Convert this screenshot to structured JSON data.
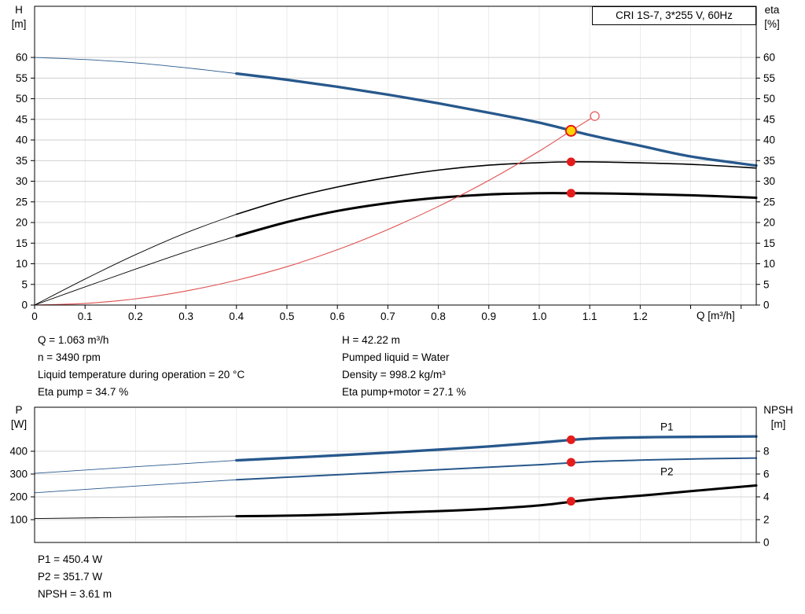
{
  "details": {
    "left": [
      "Q = 1.063 m³/h",
      "n = 3490 rpm",
      "Liquid temperature during operation = 20 °C",
      "Eta pump = 34.7 %"
    ],
    "right": [
      "H = 42.22 m",
      "Pumped liquid = Water",
      "Density = 998.2 kg/m³",
      "Eta pump+motor = 27.1 %"
    ],
    "bottom": [
      "P1 = 450.4 W",
      "P2 = 351.7 W",
      "NPSH = 3.61 m"
    ]
  },
  "chart_data": [
    {
      "id": "qh-eta",
      "type": "line",
      "title": "CRI 1S-7, 3*255 V, 60Hz",
      "x_label": "Q [m³/h]",
      "y_left_label": [
        "H",
        "[m]"
      ],
      "y_right_label": [
        "eta",
        "[%]"
      ],
      "xlim": [
        0,
        1.43
      ],
      "ylim_left": [
        0,
        72.4
      ],
      "ylim_right": [
        0,
        72.4
      ],
      "grid": true,
      "x_ticks": [
        {
          "v": 0,
          "t": "0"
        },
        {
          "v": 0.1,
          "t": "0.1"
        },
        {
          "v": 0.2,
          "t": "0.2"
        },
        {
          "v": 0.3,
          "t": "0.3"
        },
        {
          "v": 0.4,
          "t": "0.4"
        },
        {
          "v": 0.5,
          "t": "0.5"
        },
        {
          "v": 0.6,
          "t": "0.6"
        },
        {
          "v": 0.7,
          "t": "0.7"
        },
        {
          "v": 0.8,
          "t": "0.8"
        },
        {
          "v": 0.9,
          "t": "0.9"
        },
        {
          "v": 1,
          "t": "1.0"
        },
        {
          "v": 1.1,
          "t": "1.1"
        },
        {
          "v": 1.2,
          "t": "1.2"
        }
      ],
      "x_minor": [
        1.3,
        1.4
      ],
      "x_grid": [
        0.1,
        0.2,
        0.3,
        0.4,
        0.5,
        0.6,
        0.7,
        0.8,
        0.9,
        1,
        1.1,
        1.2,
        1.3,
        1.4
      ],
      "y_ticks_left": [
        {
          "v": 0,
          "t": "0"
        },
        {
          "v": 5,
          "t": "5"
        },
        {
          "v": 10,
          "t": "10"
        },
        {
          "v": 15,
          "t": "15"
        },
        {
          "v": 20,
          "t": "20"
        },
        {
          "v": 25,
          "t": "25"
        },
        {
          "v": 30,
          "t": "30"
        },
        {
          "v": 35,
          "t": "35"
        },
        {
          "v": 40,
          "t": "40"
        },
        {
          "v": 45,
          "t": "45"
        },
        {
          "v": 50,
          "t": "50"
        },
        {
          "v": 55,
          "t": "55"
        },
        {
          "v": 60,
          "t": "60"
        }
      ],
      "y_ticks_right": [
        {
          "v": 0,
          "t": "0"
        },
        {
          "v": 5,
          "t": "5"
        },
        {
          "v": 10,
          "t": "10"
        },
        {
          "v": 15,
          "t": "15"
        },
        {
          "v": 20,
          "t": "20"
        },
        {
          "v": 25,
          "t": "25"
        },
        {
          "v": 30,
          "t": "30"
        },
        {
          "v": 35,
          "t": "35"
        },
        {
          "v": 40,
          "t": "40"
        },
        {
          "v": 45,
          "t": "45"
        },
        {
          "v": 50,
          "t": "50"
        },
        {
          "v": 55,
          "t": "55"
        },
        {
          "v": 60,
          "t": "60"
        }
      ],
      "series": [
        {
          "name": "h-curve-lead",
          "axis": "left",
          "color": "#27588c",
          "width": 0.9,
          "points": [
            [
              0,
              60
            ],
            [
              0.1,
              59.5
            ],
            [
              0.2,
              58.7
            ],
            [
              0.3,
              57.5
            ],
            [
              0.4,
              56.1
            ]
          ]
        },
        {
          "name": "h-curve",
          "axis": "left",
          "color": "#27588c",
          "width": 3.3,
          "points": [
            [
              0.4,
              56.1
            ],
            [
              0.5,
              54.6
            ],
            [
              0.6,
              52.9
            ],
            [
              0.7,
              51
            ],
            [
              0.8,
              48.9
            ],
            [
              0.9,
              46.6
            ],
            [
              1,
              44.2
            ],
            [
              1.1,
              41.2
            ],
            [
              1.2,
              38.6
            ],
            [
              1.3,
              36
            ],
            [
              1.43,
              33.8
            ]
          ]
        },
        {
          "name": "eta-pump-lead",
          "axis": "right",
          "color": "#000000",
          "width": 0.9,
          "points": [
            [
              0,
              0
            ],
            [
              0.1,
              6.3
            ],
            [
              0.2,
              12.2
            ],
            [
              0.3,
              17.5
            ],
            [
              0.4,
              22
            ]
          ]
        },
        {
          "name": "eta-pump-curve",
          "axis": "right",
          "color": "#000000",
          "width": 1.6,
          "points": [
            [
              0.4,
              22
            ],
            [
              0.5,
              25.7
            ],
            [
              0.6,
              28.6
            ],
            [
              0.7,
              30.9
            ],
            [
              0.8,
              32.7
            ],
            [
              0.9,
              33.9
            ],
            [
              1,
              34.5
            ],
            [
              1.063,
              34.7
            ],
            [
              1.15,
              34.6
            ],
            [
              1.3,
              34.1
            ],
            [
              1.43,
              33.2
            ]
          ]
        },
        {
          "name": "eta-pump-motor-lead",
          "axis": "right",
          "color": "#000000",
          "width": 0.9,
          "points": [
            [
              0,
              0
            ],
            [
              0.1,
              4.4
            ],
            [
              0.2,
              8.7
            ],
            [
              0.3,
              12.9
            ],
            [
              0.4,
              16.7
            ]
          ]
        },
        {
          "name": "eta-pump-motor-curve",
          "axis": "right",
          "color": "#000000",
          "width": 3,
          "points": [
            [
              0.4,
              16.7
            ],
            [
              0.5,
              20.1
            ],
            [
              0.6,
              22.8
            ],
            [
              0.7,
              24.7
            ],
            [
              0.8,
              26
            ],
            [
              0.9,
              26.8
            ],
            [
              1,
              27.1
            ],
            [
              1.063,
              27.1
            ],
            [
              1.15,
              27
            ],
            [
              1.3,
              26.6
            ],
            [
              1.43,
              26
            ]
          ]
        },
        {
          "name": "system-curve",
          "axis": "left",
          "color": "#e05050",
          "width": 1.1,
          "points": [
            [
              0,
              0
            ],
            [
              0.1,
              0.4
            ],
            [
              0.2,
              1.5
            ],
            [
              0.3,
              3.4
            ],
            [
              0.4,
              6
            ],
            [
              0.5,
              9.3
            ],
            [
              0.6,
              13.4
            ],
            [
              0.7,
              18.3
            ],
            [
              0.8,
              23.9
            ],
            [
              0.9,
              30.2
            ],
            [
              1,
              37.3
            ],
            [
              1.063,
              42.22
            ],
            [
              1.11,
              45.8
            ]
          ]
        }
      ],
      "markers": [
        {
          "name": "requested-point-marker",
          "axis": "left",
          "point": [
            1.11,
            45.8
          ],
          "r": 5.5,
          "fill": "#ffffff",
          "stroke": "#e87070",
          "stroke_width": 1.5
        },
        {
          "name": "eta-pump-point-marker",
          "axis": "right",
          "point": [
            1.063,
            34.7
          ],
          "r": 5.5,
          "fill": "#e51c1c"
        },
        {
          "name": "eta-pump-motor-point-marker",
          "axis": "right",
          "point": [
            1.063,
            27.1
          ],
          "r": 5.5,
          "fill": "#e51c1c"
        },
        {
          "name": "duty-point-marker",
          "axis": "left",
          "point": [
            1.063,
            42.22
          ],
          "r": 6.5,
          "fill": "#ffd400",
          "stroke": "#e51c1c",
          "stroke_width": 2
        }
      ],
      "labels": []
    },
    {
      "id": "power-npsh",
      "type": "line",
      "title": "",
      "x_label": "",
      "y_left_label": [
        "P",
        "[W]"
      ],
      "y_right_label": [
        "NPSH",
        "[m]"
      ],
      "xlim": [
        0,
        1.43
      ],
      "ylim_left": [
        0,
        593
      ],
      "ylim_right": [
        0,
        11.86
      ],
      "grid": true,
      "x_ticks": [],
      "x_minor": [],
      "x_grid": [
        0.1,
        0.2,
        0.3,
        0.4,
        0.5,
        0.6,
        0.7,
        0.8,
        0.9,
        1,
        1.1,
        1.2,
        1.3,
        1.4
      ],
      "y_ticks_left": [
        {
          "v": 100,
          "t": "100"
        },
        {
          "v": 200,
          "t": "200"
        },
        {
          "v": 300,
          "t": "300"
        },
        {
          "v": 400,
          "t": "400"
        }
      ],
      "y_ticks_right": [
        {
          "v": 0,
          "t": "0"
        },
        {
          "v": 2,
          "t": "2"
        },
        {
          "v": 4,
          "t": "4"
        },
        {
          "v": 6,
          "t": "6"
        },
        {
          "v": 8,
          "t": "8"
        }
      ],
      "series": [
        {
          "name": "p1-curve-lead",
          "axis": "left",
          "color": "#27588c",
          "width": 0.9,
          "points": [
            [
              0,
              303
            ],
            [
              0.2,
              332
            ],
            [
              0.4,
              360
            ]
          ]
        },
        {
          "name": "p1-curve",
          "axis": "left",
          "color": "#27588c",
          "width": 3.3,
          "points": [
            [
              0.4,
              360
            ],
            [
              0.5,
              371
            ],
            [
              0.6,
              382
            ],
            [
              0.7,
              394
            ],
            [
              0.8,
              407
            ],
            [
              0.9,
              421
            ],
            [
              1,
              438
            ],
            [
              1.1,
              455
            ],
            [
              1.2,
              461
            ],
            [
              1.3,
              463
            ],
            [
              1.43,
              465
            ]
          ]
        },
        {
          "name": "p2-curve-lead",
          "axis": "left",
          "color": "#27588c",
          "width": 0.9,
          "points": [
            [
              0,
              218
            ],
            [
              0.2,
              247
            ],
            [
              0.4,
              275
            ]
          ]
        },
        {
          "name": "p2-curve",
          "axis": "left",
          "color": "#27588c",
          "width": 2,
          "points": [
            [
              0.4,
              275
            ],
            [
              0.5,
              286
            ],
            [
              0.6,
              297
            ],
            [
              0.7,
              308
            ],
            [
              0.8,
              319
            ],
            [
              0.9,
              330
            ],
            [
              1,
              341
            ],
            [
              1.1,
              354
            ],
            [
              1.2,
              361
            ],
            [
              1.3,
              366
            ],
            [
              1.43,
              370
            ]
          ]
        },
        {
          "name": "npsh-curve-lead",
          "axis": "right",
          "color": "#000000",
          "width": 0.9,
          "points": [
            [
              0,
              2.1
            ],
            [
              0.2,
              2.2
            ],
            [
              0.4,
              2.3
            ]
          ]
        },
        {
          "name": "npsh-curve",
          "axis": "right",
          "color": "#000000",
          "width": 3,
          "points": [
            [
              0.4,
              2.3
            ],
            [
              0.5,
              2.35
            ],
            [
              0.6,
              2.45
            ],
            [
              0.7,
              2.6
            ],
            [
              0.8,
              2.75
            ],
            [
              0.9,
              2.95
            ],
            [
              1,
              3.25
            ],
            [
              1.1,
              3.75
            ],
            [
              1.2,
              4.1
            ],
            [
              1.3,
              4.5
            ],
            [
              1.43,
              5
            ]
          ]
        }
      ],
      "markers": [
        {
          "name": "p1-point-marker",
          "axis": "left",
          "point": [
            1.063,
            450.4
          ],
          "r": 5.5,
          "fill": "#e51c1c"
        },
        {
          "name": "p2-point-marker",
          "axis": "left",
          "point": [
            1.063,
            351.7
          ],
          "r": 5.5,
          "fill": "#e51c1c"
        },
        {
          "name": "npsh-point-marker",
          "axis": "right",
          "point": [
            1.063,
            3.61
          ],
          "r": 5.5,
          "fill": "#e51c1c"
        }
      ],
      "labels": [
        {
          "name": "p1-series-label",
          "text": "P1",
          "axis": "left",
          "point": [
            1.24,
            492
          ],
          "color": "#2a5fa5"
        },
        {
          "name": "p2-series-label",
          "text": "P2",
          "axis": "left",
          "point": [
            1.24,
            295
          ],
          "color": "#2a5fa5"
        }
      ]
    }
  ]
}
